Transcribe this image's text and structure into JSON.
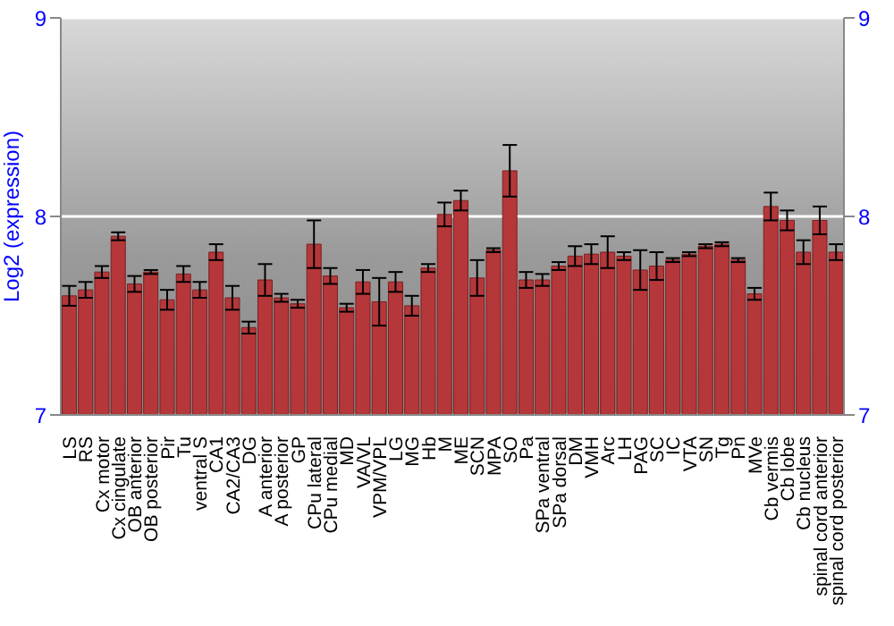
{
  "chart_data": {
    "type": "bar",
    "ylabel": "Log2 (expression)",
    "categories": [
      "LS",
      "RS",
      "Cx motor",
      "Cx cingulate",
      "OB anterior",
      "OB posterior",
      "Pir",
      "Tu",
      "ventral S",
      "CA1",
      "CA2/CA3",
      "DG",
      "A anterior",
      "A posterior",
      "GP",
      "CPu lateral",
      "CPu medial",
      "MD",
      "VA/VL",
      "VPM/VPL",
      "LG",
      "MG",
      "Hb",
      "M",
      "ME",
      "SCN",
      "MPA",
      "SO",
      "Pa",
      "SPa ventral",
      "SPa dorsal",
      "DM",
      "VMH",
      "Arc",
      "LH",
      "PAG",
      "SC",
      "IC",
      "VTA",
      "SN",
      "Tg",
      "Pn",
      "MVe",
      "Cb vermis",
      "Cb lobe",
      "Cb nucleus",
      "spinal cord anterior",
      "spinal cord posterior"
    ],
    "values": [
      7.6,
      7.63,
      7.72,
      7.9,
      7.66,
      7.72,
      7.58,
      7.71,
      7.63,
      7.82,
      7.59,
      7.44,
      7.68,
      7.59,
      7.56,
      7.86,
      7.7,
      7.54,
      7.67,
      7.57,
      7.67,
      7.55,
      7.74,
      8.01,
      8.08,
      7.69,
      7.83,
      8.23,
      7.68,
      7.68,
      7.75,
      7.8,
      7.81,
      7.82,
      7.8,
      7.73,
      7.75,
      7.78,
      7.81,
      7.85,
      7.86,
      7.78,
      7.61,
      8.05,
      7.98,
      7.82,
      7.98,
      7.82
    ],
    "errors": [
      0.05,
      0.04,
      0.03,
      0.02,
      0.04,
      0.01,
      0.05,
      0.04,
      0.04,
      0.04,
      0.06,
      0.03,
      0.08,
      0.02,
      0.02,
      0.12,
      0.04,
      0.02,
      0.06,
      0.12,
      0.05,
      0.05,
      0.02,
      0.06,
      0.05,
      0.09,
      0.01,
      0.13,
      0.04,
      0.03,
      0.02,
      0.05,
      0.05,
      0.08,
      0.02,
      0.1,
      0.07,
      0.01,
      0.01,
      0.01,
      0.01,
      0.01,
      0.03,
      0.07,
      0.05,
      0.06,
      0.07,
      0.04
    ],
    "color": "#b5373a",
    "ylim": [
      7,
      9
    ],
    "yticks": [
      7,
      8,
      9
    ],
    "y2lim": [
      7,
      9
    ],
    "y2ticks": [
      7,
      8,
      9
    ],
    "grid": "y"
  }
}
